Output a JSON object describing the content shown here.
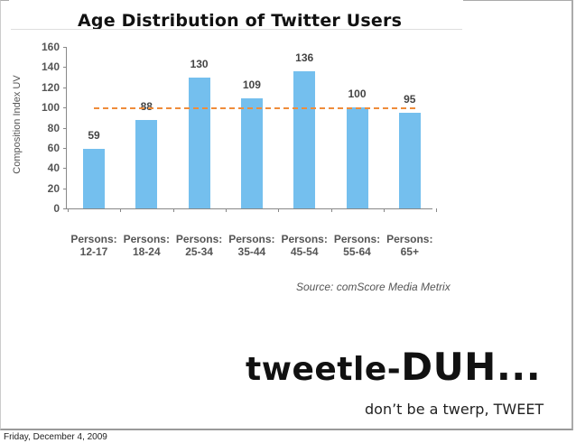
{
  "slide": {
    "date": "Friday, December 4, 2009",
    "brand_prefix": "tweetle-",
    "brand_emphasis": "DUH...",
    "tagline": "don’t be a twerp, TWEET"
  },
  "chart_data": {
    "type": "bar",
    "title": "Age Distribution of Twitter Users",
    "xlabel": "",
    "ylabel": "Composition Index UV",
    "ylim": [
      0,
      160
    ],
    "yticks": [
      0,
      20,
      40,
      60,
      80,
      100,
      120,
      140,
      160
    ],
    "categories": [
      "Persons: 12-17",
      "Persons: 18-24",
      "Persons: 25-34",
      "Persons: 35-44",
      "Persons: 45-54",
      "Persons: 55-64",
      "Persons: 65+"
    ],
    "category_lines": [
      [
        "Persons:",
        "12-17"
      ],
      [
        "Persons:",
        "18-24"
      ],
      [
        "Persons:",
        "25-34"
      ],
      [
        "Persons:",
        "35-44"
      ],
      [
        "Persons:",
        "45-54"
      ],
      [
        "Persons:",
        "55-64"
      ],
      [
        "Persons:",
        "65+"
      ]
    ],
    "values": [
      59,
      88,
      130,
      109,
      136,
      100,
      95
    ],
    "data_labels": [
      "59",
      "88",
      "130",
      "109",
      "136",
      "100",
      "95"
    ],
    "reference_line": {
      "value": 100,
      "style": "dashed",
      "color": "#ef8c3a"
    },
    "bar_color": "#74bfee",
    "grid": false,
    "legend": null,
    "source": "Source: comScore Media Metrix"
  }
}
